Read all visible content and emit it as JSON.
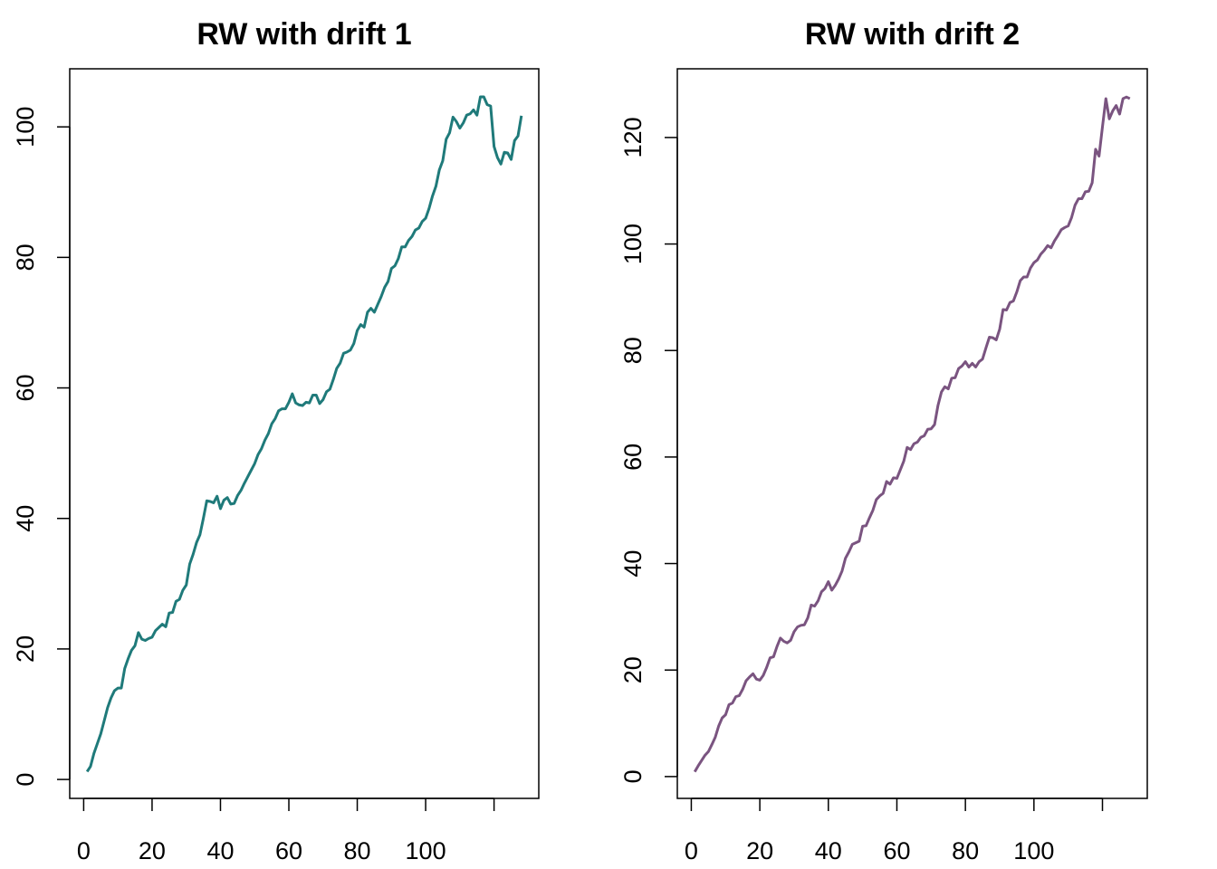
{
  "chart_data": [
    {
      "type": "line",
      "title": "RW with drift 1",
      "color": "#1f7a7a",
      "x": [
        1,
        2,
        3,
        4,
        5,
        6,
        7,
        8,
        9,
        10,
        11,
        12,
        13,
        14,
        15,
        16,
        17,
        18,
        19,
        20,
        21,
        22,
        23,
        24,
        25,
        26,
        27,
        28,
        29,
        30,
        31,
        32,
        33,
        34,
        35,
        36,
        37,
        38,
        39,
        40,
        41,
        42,
        43,
        44,
        45,
        46,
        47,
        48,
        49,
        50,
        51,
        52,
        53,
        54,
        55,
        56,
        57,
        58,
        59,
        60,
        61,
        62,
        63,
        64,
        65,
        66,
        67,
        68,
        69,
        70,
        71,
        72,
        73,
        74,
        75,
        76,
        77,
        78,
        79,
        80,
        81,
        82,
        83,
        84,
        85,
        86,
        87,
        88,
        89,
        90,
        91,
        92,
        93,
        94,
        95,
        96,
        97,
        98,
        99,
        100,
        101,
        102,
        103,
        104,
        105,
        106,
        107,
        108,
        109,
        110,
        111,
        112,
        113,
        114,
        115,
        116,
        117,
        118,
        119,
        120,
        121,
        122,
        123,
        124,
        125,
        126,
        127,
        128
      ],
      "values": [
        1.2,
        2,
        4,
        5.5,
        7,
        9,
        11,
        12.5,
        13.6,
        14,
        14,
        17,
        18.5,
        19.8,
        20.5,
        22.5,
        21.5,
        21.3,
        21.6,
        21.8,
        22.8,
        23.3,
        23.8,
        23.4,
        25.5,
        25.6,
        27.3,
        27.6,
        29,
        29.8,
        33,
        34.5,
        36.3,
        37.5,
        40,
        42.7,
        42.6,
        42.4,
        43.4,
        41.5,
        42.8,
        43.2,
        42.2,
        42.3,
        43.5,
        44.3,
        45.4,
        46.4,
        47.4,
        48.4,
        49.8,
        50.7,
        52,
        53,
        54.5,
        55.3,
        56.5,
        56.8,
        56.8,
        57.8,
        59.1,
        57.7,
        57.4,
        57.3,
        57.8,
        57.7,
        58.9,
        58.9,
        57.6,
        58.2,
        59.4,
        59.8,
        61.3,
        63,
        63.8,
        65.3,
        65.5,
        65.8,
        66.8,
        68.8,
        69.7,
        69.3,
        71.6,
        72.2,
        71.6,
        72.8,
        74,
        75.4,
        76.3,
        78.3,
        78.7,
        79.8,
        81.6,
        81.6,
        82.6,
        83.2,
        84.2,
        84.5,
        85.5,
        86,
        87.5,
        89.4,
        90.9,
        93.4,
        94.8,
        98.1,
        99.1,
        101.5,
        100.8,
        99.8,
        100.6,
        101.8,
        102,
        102.6,
        101.8,
        104.6,
        104.6,
        103.4,
        103.2,
        97,
        95.3,
        94.3,
        96.1,
        96,
        95,
        97.9,
        98.6,
        101.7
      ],
      "xlim": [
        -4.08,
        133.08
      ],
      "xticks": [
        0,
        20,
        40,
        60,
        80,
        100,
        {
          "value": 120,
          "label": null
        }
      ],
      "ylim": [
        -2.9,
        108.9
      ],
      "yticks": [
        0,
        20,
        40,
        60,
        80,
        100
      ]
    },
    {
      "type": "line",
      "title": "RW with drift 2",
      "color": "#7a5480",
      "x": [
        1,
        2,
        3,
        4,
        5,
        6,
        7,
        8,
        9,
        10,
        11,
        12,
        13,
        14,
        15,
        16,
        17,
        18,
        19,
        20,
        21,
        22,
        23,
        24,
        25,
        26,
        27,
        28,
        29,
        30,
        31,
        32,
        33,
        34,
        35,
        36,
        37,
        38,
        39,
        40,
        41,
        42,
        43,
        44,
        45,
        46,
        47,
        48,
        49,
        50,
        51,
        52,
        53,
        54,
        55,
        56,
        57,
        58,
        59,
        60,
        61,
        62,
        63,
        64,
        65,
        66,
        67,
        68,
        69,
        70,
        71,
        72,
        73,
        74,
        75,
        76,
        77,
        78,
        79,
        80,
        81,
        82,
        83,
        84,
        85,
        86,
        87,
        88,
        89,
        90,
        91,
        92,
        93,
        94,
        95,
        96,
        97,
        98,
        99,
        100,
        101,
        102,
        103,
        104,
        105,
        106,
        107,
        108,
        109,
        110,
        111,
        112,
        113,
        114,
        115,
        116,
        117,
        118,
        119,
        120,
        121,
        122,
        123,
        124,
        125,
        126,
        127,
        128
      ],
      "values": [
        0.9,
        2,
        3,
        4,
        4.7,
        6,
        7.4,
        9.5,
        11,
        11.6,
        13.5,
        13.8,
        15,
        15.2,
        16.4,
        18,
        18.7,
        19.3,
        18.3,
        18.1,
        19,
        20.5,
        22.3,
        22.5,
        24.4,
        26,
        25.4,
        25.1,
        25.6,
        27.2,
        28.1,
        28.4,
        28.5,
        29.8,
        32.2,
        32,
        33,
        34.7,
        35.3,
        36.6,
        35,
        35.9,
        37.1,
        38.6,
        41,
        42.2,
        43.6,
        43.9,
        44.2,
        47,
        47.1,
        48.6,
        50,
        52,
        52.7,
        53.2,
        55.4,
        54.9,
        56.1,
        56,
        57.6,
        59.2,
        61.8,
        61.4,
        62.5,
        62.8,
        63.7,
        64,
        65.2,
        65.3,
        66.1,
        69.7,
        72.2,
        73.2,
        72.8,
        74.8,
        74.9,
        76.6,
        77.1,
        77.9,
        76.9,
        77.6,
        76.9,
        77.9,
        78.4,
        80.5,
        82.5,
        82.4,
        82,
        84,
        87.7,
        87.6,
        89,
        89.3,
        91,
        93.1,
        93.8,
        93.8,
        95.5,
        96.5,
        97,
        98.1,
        98.8,
        99.7,
        99.3,
        100.6,
        101.6,
        102.7,
        103.1,
        103.4,
        105,
        107.3,
        108.5,
        108.5,
        109.8,
        109.9,
        111.5,
        117.8,
        116.5,
        122,
        127.3,
        123.5,
        125,
        126,
        124.4,
        127.3,
        127.6,
        127.3
      ],
      "xlim": [
        -4.08,
        133.08
      ],
      "xticks": [
        0,
        20,
        40,
        60,
        80,
        100,
        {
          "value": 120,
          "label": null
        }
      ],
      "ylim": [
        -4.1,
        132.9
      ],
      "yticks": [
        0,
        20,
        40,
        60,
        80,
        100,
        120
      ]
    }
  ]
}
